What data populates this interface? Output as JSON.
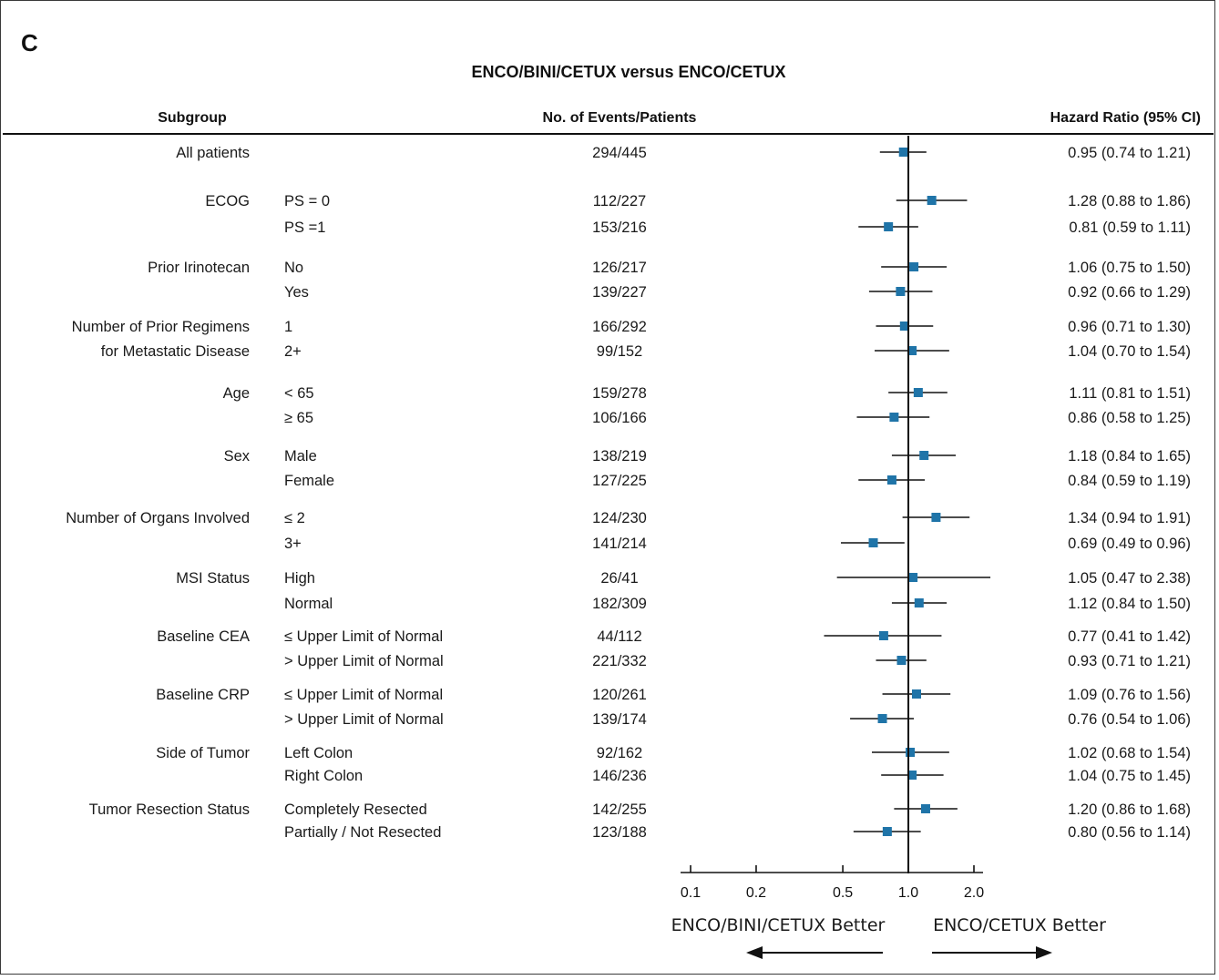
{
  "panel_label": "C",
  "chart_data": {
    "type": "forest",
    "title": "ENCO/BINI/CETUX versus ENCO/CETUX",
    "columns": {
      "subgroup": "Subgroup",
      "events": "No. of Events/Patients",
      "hr": "Hazard Ratio (95% CI)"
    },
    "x_scale": "log",
    "xlim": [
      0.1,
      2.0
    ],
    "reference_line": 1.0,
    "x_ticks": [
      {
        "value": 0.1,
        "label": "0.1"
      },
      {
        "value": 0.2,
        "label": "0.2"
      },
      {
        "value": 0.5,
        "label": "0.5"
      },
      {
        "value": 1.0,
        "label": "1.0"
      },
      {
        "value": 2.0,
        "label": "2.0"
      }
    ],
    "left_label": "ENCO/BINI/CETUX Better",
    "right_label": "ENCO/CETUX Better",
    "marker_color": "#1f74a8",
    "rows": [
      {
        "group": "All patients",
        "sub": "",
        "events": "294/445",
        "hr": 0.95,
        "lo": 0.74,
        "hi": 1.21,
        "hr_text": "0.95 (0.74 to 1.21)"
      },
      {
        "group": "ECOG",
        "sub": "PS = 0",
        "events": "112/227",
        "hr": 1.28,
        "lo": 0.88,
        "hi": 1.86,
        "hr_text": "1.28 (0.88 to 1.86)"
      },
      {
        "group": "",
        "sub": "PS =1",
        "events": "153/216",
        "hr": 0.81,
        "lo": 0.59,
        "hi": 1.11,
        "hr_text": "0.81 (0.59 to 1.11)"
      },
      {
        "group": "Prior Irinotecan",
        "sub": "No",
        "events": "126/217",
        "hr": 1.06,
        "lo": 0.75,
        "hi": 1.5,
        "hr_text": "1.06 (0.75 to 1.50)"
      },
      {
        "group": "",
        "sub": "Yes",
        "events": "139/227",
        "hr": 0.92,
        "lo": 0.66,
        "hi": 1.29,
        "hr_text": "0.92 (0.66 to 1.29)"
      },
      {
        "group": "Number of Prior Regimens",
        "sub": "1",
        "events": "166/292",
        "hr": 0.96,
        "lo": 0.71,
        "hi": 1.3,
        "hr_text": "0.96 (0.71 to 1.30)"
      },
      {
        "group": "for Metastatic Disease",
        "sub": "2+",
        "events": "99/152",
        "hr": 1.04,
        "lo": 0.7,
        "hi": 1.54,
        "hr_text": "1.04 (0.70 to 1.54)"
      },
      {
        "group": "Age",
        "sub": "< 65",
        "events": "159/278",
        "hr": 1.11,
        "lo": 0.81,
        "hi": 1.51,
        "hr_text": "1.11 (0.81 to 1.51)"
      },
      {
        "group": "",
        "sub": "≥ 65",
        "events": "106/166",
        "hr": 0.86,
        "lo": 0.58,
        "hi": 1.25,
        "hr_text": "0.86 (0.58 to 1.25)"
      },
      {
        "group": "Sex",
        "sub": "Male",
        "events": "138/219",
        "hr": 1.18,
        "lo": 0.84,
        "hi": 1.65,
        "hr_text": "1.18 (0.84 to 1.65)"
      },
      {
        "group": "",
        "sub": "Female",
        "events": "127/225",
        "hr": 0.84,
        "lo": 0.59,
        "hi": 1.19,
        "hr_text": "0.84 (0.59 to 1.19)"
      },
      {
        "group": "Number of Organs Involved",
        "sub": "≤ 2",
        "events": "124/230",
        "hr": 1.34,
        "lo": 0.94,
        "hi": 1.91,
        "hr_text": "1.34 (0.94 to 1.91)"
      },
      {
        "group": "",
        "sub": "3+",
        "events": "141/214",
        "hr": 0.69,
        "lo": 0.49,
        "hi": 0.96,
        "hr_text": "0.69 (0.49 to 0.96)"
      },
      {
        "group": "MSI Status",
        "sub": "High",
        "events": "26/41",
        "hr": 1.05,
        "lo": 0.47,
        "hi": 2.38,
        "hr_text": "1.05 (0.47 to 2.38)"
      },
      {
        "group": "",
        "sub": "Normal",
        "events": "182/309",
        "hr": 1.12,
        "lo": 0.84,
        "hi": 1.5,
        "hr_text": "1.12 (0.84 to 1.50)"
      },
      {
        "group": "Baseline CEA",
        "sub": "≤ Upper Limit of Normal",
        "events": "44/112",
        "hr": 0.77,
        "lo": 0.41,
        "hi": 1.42,
        "hr_text": "0.77 (0.41 to 1.42)"
      },
      {
        "group": "",
        "sub": "> Upper Limit of Normal",
        "events": "221/332",
        "hr": 0.93,
        "lo": 0.71,
        "hi": 1.21,
        "hr_text": "0.93 (0.71 to 1.21)"
      },
      {
        "group": "Baseline CRP",
        "sub": "≤ Upper Limit of Normal",
        "events": "120/261",
        "hr": 1.09,
        "lo": 0.76,
        "hi": 1.56,
        "hr_text": "1.09 (0.76 to 1.56)"
      },
      {
        "group": "",
        "sub": "> Upper Limit of Normal",
        "events": "139/174",
        "hr": 0.76,
        "lo": 0.54,
        "hi": 1.06,
        "hr_text": "0.76 (0.54 to 1.06)"
      },
      {
        "group": "Side of Tumor",
        "sub": "Left Colon",
        "events": "92/162",
        "hr": 1.02,
        "lo": 0.68,
        "hi": 1.54,
        "hr_text": "1.02 (0.68 to 1.54)"
      },
      {
        "group": "",
        "sub": "Right Colon",
        "events": "146/236",
        "hr": 1.04,
        "lo": 0.75,
        "hi": 1.45,
        "hr_text": "1.04 (0.75 to 1.45)"
      },
      {
        "group": "Tumor Resection Status",
        "sub": "Completely Resected",
        "events": "142/255",
        "hr": 1.2,
        "lo": 0.86,
        "hi": 1.68,
        "hr_text": "1.20 (0.86 to 1.68)"
      },
      {
        "group": "",
        "sub": "Partially / Not Resected",
        "events": "123/188",
        "hr": 0.8,
        "lo": 0.56,
        "hi": 1.14,
        "hr_text": "0.80 (0.56 to 1.14)"
      }
    ]
  }
}
